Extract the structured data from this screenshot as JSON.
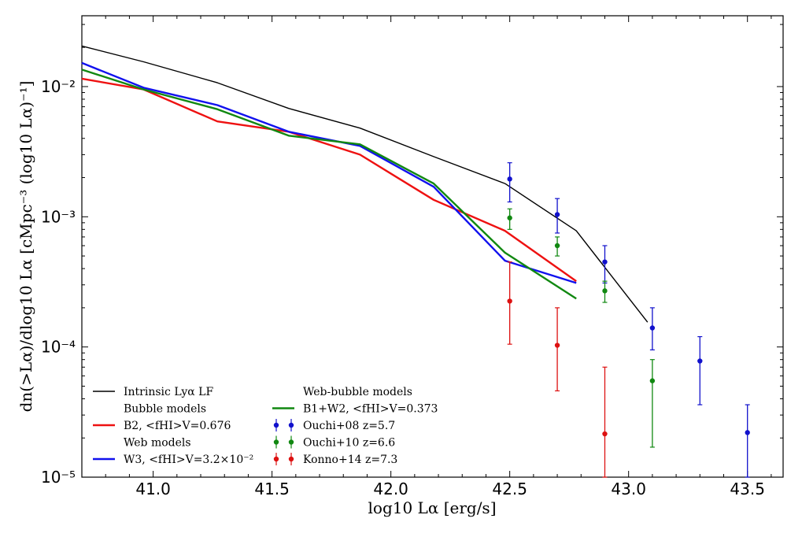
{
  "chart_data": {
    "type": "line",
    "title": "",
    "xlabel": "log10 Lα [erg/s]",
    "ylabel": "dn(>Lα)/dlog10 Lα [cMpc⁻³ (log10 Lα)⁻¹]",
    "xlim": [
      40.7,
      43.65
    ],
    "ylim": [
      1e-05,
      0.035
    ],
    "yscale": "log",
    "grid": false,
    "legend_position": "bottom-left",
    "x_ticks": [
      "41.0",
      "41.5",
      "42.0",
      "42.5",
      "43.0",
      "43.5"
    ],
    "y_ticks": [
      "10⁻²",
      "10⁻³",
      "10⁻⁴",
      "10⁻⁵"
    ],
    "series": [
      {
        "name": "Intrinsic Lyα LF",
        "color": "#000000",
        "kind": "line",
        "x": [
          40.7,
          40.96,
          41.27,
          41.57,
          41.87,
          42.18,
          42.48,
          42.78,
          43.08
        ],
        "y": [
          0.0205,
          0.0155,
          0.0107,
          0.0068,
          0.0048,
          0.0029,
          0.0018,
          0.00078,
          0.000155
        ]
      },
      {
        "name": "B2, <fHI>V=0.676",
        "color": "#ee1111",
        "kind": "line",
        "x": [
          40.7,
          40.96,
          41.27,
          41.57,
          41.87,
          42.18,
          42.48,
          42.78
        ],
        "y": [
          0.0115,
          0.0095,
          0.0054,
          0.0045,
          0.003,
          0.00135,
          0.00078,
          0.00032
        ]
      },
      {
        "name": "W3, <fHI>V=3.2×10⁻²",
        "color": "#1111ee",
        "kind": "line",
        "x": [
          40.7,
          40.96,
          41.27,
          41.57,
          41.87,
          42.18,
          42.48,
          42.78
        ],
        "y": [
          0.0152,
          0.0098,
          0.0072,
          0.0045,
          0.0035,
          0.0017,
          0.00046,
          0.00031
        ]
      },
      {
        "name": "B1+W2, <fHI>V=0.373",
        "color": "#118811",
        "kind": "line",
        "x": [
          40.7,
          40.96,
          41.27,
          41.57,
          41.87,
          42.18,
          42.48,
          42.78
        ],
        "y": [
          0.0135,
          0.0095,
          0.0067,
          0.0042,
          0.0036,
          0.0018,
          0.00053,
          0.000235
        ]
      },
      {
        "name": "Ouchi+08 z=5.7",
        "color": "#1111cc",
        "kind": "errorbar",
        "x": [
          42.5,
          42.7,
          42.9,
          43.1,
          43.3,
          43.5
        ],
        "y": [
          0.00195,
          0.00104,
          0.00045,
          0.00014,
          7.8e-05,
          2.2e-05
        ],
        "yerr_low": [
          0.0013,
          0.00075,
          0.00031,
          9.5e-05,
          3.6e-05,
          1e-05
        ],
        "yerr_high": [
          0.0026,
          0.00138,
          0.0006,
          0.0002,
          0.00012,
          3.6e-05
        ]
      },
      {
        "name": "Ouchi+10 z=6.6",
        "color": "#118811",
        "kind": "errorbar",
        "x": [
          42.5,
          42.7,
          42.9,
          43.1
        ],
        "y": [
          0.00098,
          0.0006,
          0.00027,
          5.5e-05
        ],
        "yerr_low": [
          0.0008,
          0.0005,
          0.00022,
          1.7e-05
        ],
        "yerr_high": [
          0.00115,
          0.0007,
          0.00032,
          8e-05
        ]
      },
      {
        "name": "Konno+14 z=7.3",
        "color": "#dd1111",
        "kind": "errorbar",
        "x": [
          42.5,
          42.7,
          42.9
        ],
        "y": [
          0.000225,
          0.000103,
          2.15e-05
        ],
        "yerr_low": [
          0.000105,
          4.6e-05,
          1e-05
        ],
        "yerr_high": [
          0.00045,
          0.0002,
          7e-05
        ]
      }
    ],
    "legend": {
      "col1": [
        {
          "label": "Intrinsic Lyα LF",
          "marker": "line",
          "color": "#000000"
        },
        {
          "label": "Bubble models",
          "marker": "none"
        },
        {
          "label": "B2, <fHI>V=0.676",
          "marker": "line",
          "color": "#ee1111"
        },
        {
          "label": "Web models",
          "marker": "none"
        },
        {
          "label": "W3, <fHI>V=3.2×10⁻²",
          "marker": "line",
          "color": "#1111ee"
        }
      ],
      "col2": [
        {
          "label": "Web-bubble models",
          "marker": "none"
        },
        {
          "label": "B1+W2, <fHI>V=0.373",
          "marker": "line",
          "color": "#118811"
        },
        {
          "label": "Ouchi+08 z=5.7",
          "marker": "errorbar",
          "color": "#1111cc"
        },
        {
          "label": "Ouchi+10 z=6.6",
          "marker": "errorbar",
          "color": "#118811"
        },
        {
          "label": "Konno+14 z=7.3",
          "marker": "errorbar",
          "color": "#dd1111"
        }
      ]
    }
  }
}
